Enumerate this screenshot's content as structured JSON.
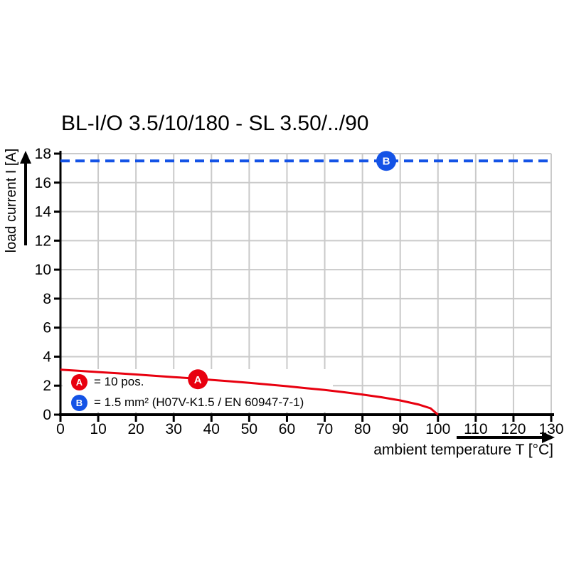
{
  "chart_data": {
    "type": "line",
    "title": "BL-I/O 3.5/10/180 - SL 3.50/../90",
    "xlabel": "ambient temperature T [°C]",
    "ylabel": "load current I [A]",
    "xlim": [
      0,
      130
    ],
    "ylim": [
      0,
      18
    ],
    "x_ticks": [
      0,
      10,
      20,
      30,
      40,
      50,
      60,
      70,
      80,
      90,
      100,
      110,
      120,
      130
    ],
    "y_ticks": [
      0,
      2,
      4,
      6,
      8,
      10,
      12,
      14,
      16,
      18
    ],
    "grid": true,
    "legend_position": "bottom-left-inside",
    "colors": {
      "series_a": "#e8000f",
      "series_b": "#1453e6",
      "grid": "#cacaca",
      "axis": "#000000"
    },
    "series": [
      {
        "name": "A",
        "legend_label": "= 10 pos.",
        "line_style": "solid",
        "color_key": "series_a",
        "points": [
          [
            0,
            3.1
          ],
          [
            5,
            3.02
          ],
          [
            10,
            2.94
          ],
          [
            15,
            2.86
          ],
          [
            20,
            2.77
          ],
          [
            25,
            2.68
          ],
          [
            30,
            2.59
          ],
          [
            35,
            2.5
          ],
          [
            40,
            2.4
          ],
          [
            45,
            2.3
          ],
          [
            50,
            2.19
          ],
          [
            55,
            2.08
          ],
          [
            60,
            1.96
          ],
          [
            65,
            1.83
          ],
          [
            70,
            1.7
          ],
          [
            75,
            1.55
          ],
          [
            80,
            1.39
          ],
          [
            85,
            1.2
          ],
          [
            90,
            0.98
          ],
          [
            95,
            0.69
          ],
          [
            98,
            0.44
          ],
          [
            100,
            0.0
          ]
        ]
      },
      {
        "name": "B",
        "legend_label": "= 1.5 mm² (H07V-K1.5 / EN 60947-7-1)",
        "line_style": "dashed",
        "color_key": "series_b",
        "constant_value": 17.5,
        "x_range": [
          0,
          130
        ]
      }
    ],
    "markers": [
      {
        "label": "A",
        "x": 36.4,
        "y": 2.44,
        "color_key": "series_a"
      },
      {
        "label": "B",
        "x": 86.3,
        "y": 17.5,
        "color_key": "series_b"
      }
    ]
  }
}
